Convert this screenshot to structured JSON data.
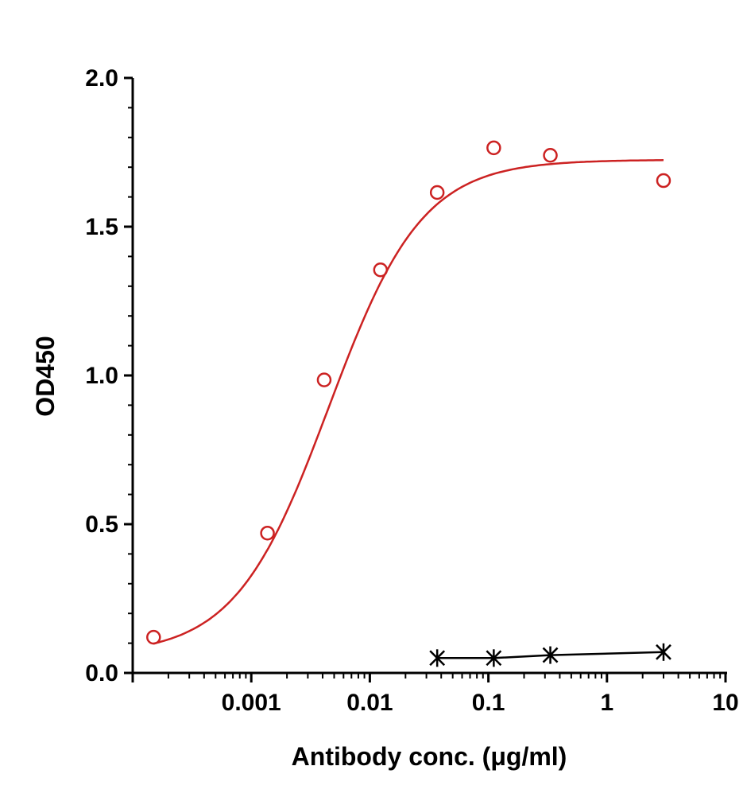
{
  "chart_data": {
    "type": "scatter",
    "title": "",
    "xlabel": "Antibody conc. (μg/ml)",
    "ylabel": "OD450",
    "x_scale": "log",
    "xlim": [
      0.0001,
      10
    ],
    "ylim": [
      0,
      2.0
    ],
    "x_ticks": [
      0.001,
      0.01,
      0.1,
      1,
      10
    ],
    "x_tick_labels": [
      "0.001",
      "0.01",
      "0.1",
      "1",
      "10"
    ],
    "y_ticks": [
      0,
      0.5,
      1.0,
      1.5,
      2.0
    ],
    "y_tick_labels": [
      "0.0",
      "0.5",
      "1.0",
      "1.5",
      "2.0"
    ],
    "grid": false,
    "series": [
      {
        "marker": "open-circle",
        "color": "#cc2222",
        "x": [
          0.00015,
          0.00137,
          0.00412,
          0.0123,
          0.037,
          0.111,
          0.333,
          3.0
        ],
        "y": [
          0.12,
          0.47,
          0.985,
          1.355,
          1.615,
          1.765,
          1.74,
          1.655
        ],
        "fit_curve": {
          "model": "4PL",
          "bottom": 0.06,
          "top": 1.725,
          "ec50": 0.0045,
          "hill": 1.1,
          "x_range": [
            0.00015,
            3.0
          ]
        }
      },
      {
        "marker": "asterisk",
        "color": "#000000",
        "connected": true,
        "x": [
          0.037,
          0.111,
          0.333,
          3.0
        ],
        "y": [
          0.05,
          0.05,
          0.06,
          0.07
        ]
      }
    ]
  }
}
